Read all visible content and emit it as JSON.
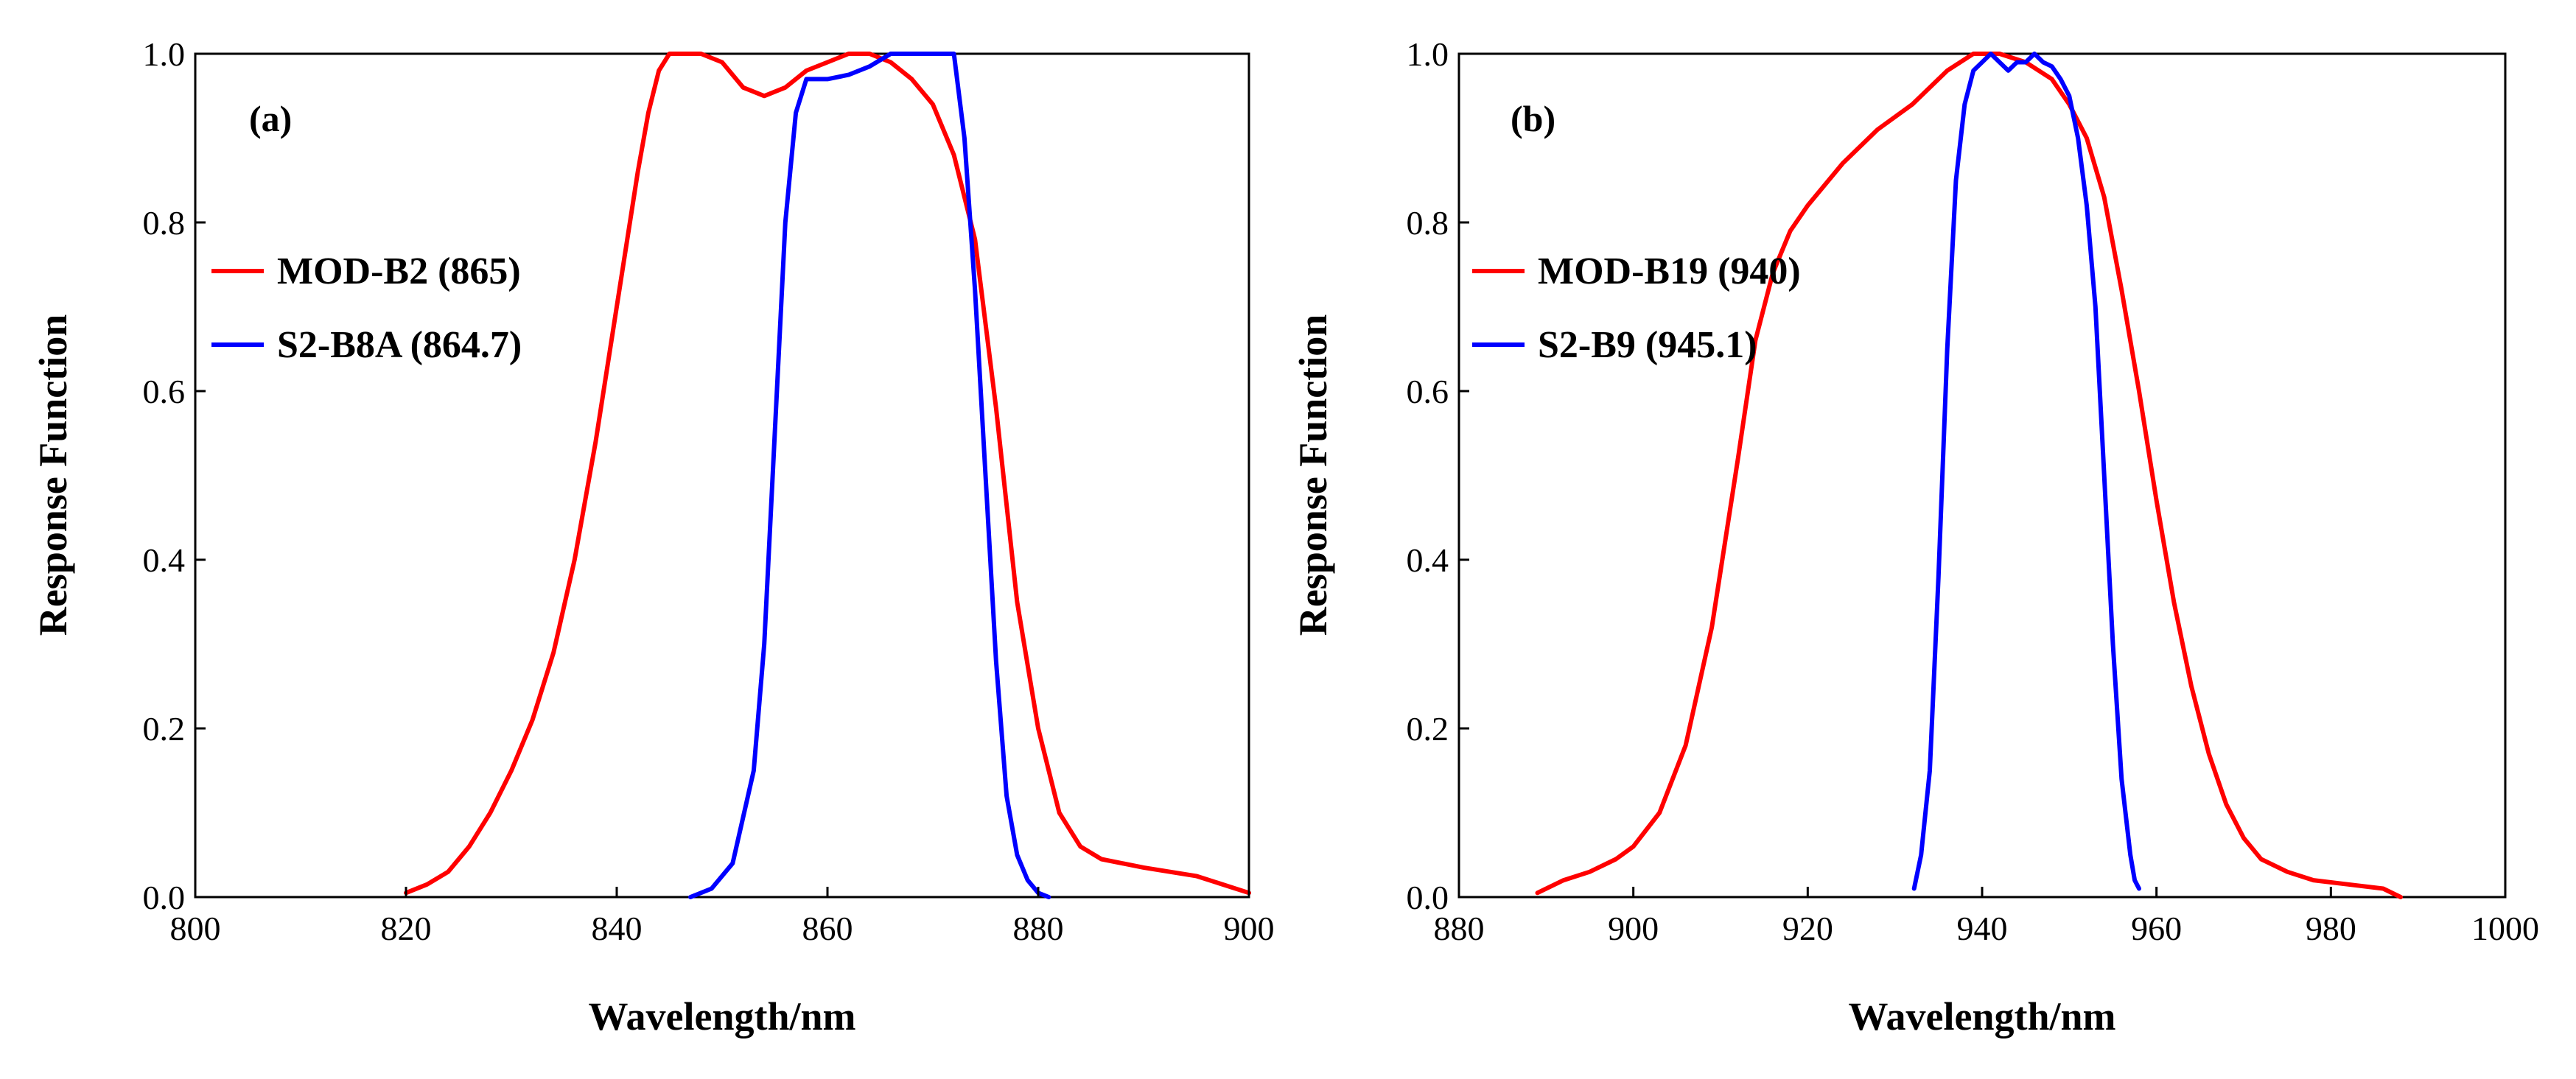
{
  "colors": {
    "modis": "#ff0000",
    "s2": "#0000ff",
    "axis": "#000000"
  },
  "chart_data": [
    {
      "type": "line",
      "panel_label": "(a)",
      "xlabel": "Wavelength/nm",
      "ylabel": "Response Function",
      "xlim": [
        800,
        900
      ],
      "ylim": [
        0.0,
        1.0
      ],
      "xticks": [
        800,
        820,
        840,
        860,
        880,
        900
      ],
      "yticks": [
        "0.0",
        "0.2",
        "0.4",
        "0.6",
        "0.8",
        "1.0"
      ],
      "legend_position": "upper-left",
      "series": [
        {
          "name": "MOD-B2 (865)",
          "color": "#ff0000",
          "x": [
            820,
            822,
            824,
            826,
            828,
            830,
            832,
            834,
            836,
            838,
            840,
            842,
            843,
            844,
            845,
            846,
            848,
            850,
            852,
            854,
            856,
            858,
            860,
            862,
            864,
            866,
            868,
            870,
            872,
            874,
            876,
            878,
            880,
            882,
            884,
            886,
            890,
            895,
            900
          ],
          "y": [
            0.005,
            0.015,
            0.03,
            0.06,
            0.1,
            0.15,
            0.21,
            0.29,
            0.4,
            0.54,
            0.7,
            0.86,
            0.93,
            0.98,
            1.0,
            1.0,
            1.0,
            0.99,
            0.96,
            0.95,
            0.96,
            0.98,
            0.99,
            1.0,
            1.0,
            0.99,
            0.97,
            0.94,
            0.88,
            0.78,
            0.58,
            0.35,
            0.2,
            0.1,
            0.06,
            0.045,
            0.035,
            0.025,
            0.005
          ]
        },
        {
          "name": "S2-B8A (864.7)",
          "color": "#0000ff",
          "x": [
            847,
            849,
            851,
            853,
            854,
            855,
            856,
            857,
            858,
            860,
            862,
            864,
            866,
            868,
            870,
            872,
            873,
            874,
            875,
            876,
            877,
            878,
            879,
            880,
            881
          ],
          "y": [
            0.0,
            0.01,
            0.04,
            0.15,
            0.3,
            0.55,
            0.8,
            0.93,
            0.97,
            0.97,
            0.975,
            0.985,
            1.0,
            1.0,
            1.0,
            1.0,
            0.9,
            0.72,
            0.5,
            0.28,
            0.12,
            0.05,
            0.02,
            0.005,
            0.0
          ]
        }
      ]
    },
    {
      "type": "line",
      "panel_label": "(b)",
      "xlabel": "Wavelength/nm",
      "ylabel": "Response Function",
      "xlim": [
        880,
        1000
      ],
      "ylim": [
        0.0,
        1.0
      ],
      "xticks": [
        880,
        900,
        920,
        940,
        960,
        980,
        1000
      ],
      "yticks": [
        "0.0",
        "0.2",
        "0.4",
        "0.6",
        "0.8",
        "1.0"
      ],
      "legend_position": "upper-left",
      "series": [
        {
          "name": "MOD-B19 (940)",
          "color": "#ff0000",
          "x": [
            889,
            892,
            895,
            898,
            900,
            903,
            906,
            909,
            912,
            914,
            916,
            918,
            920,
            924,
            928,
            932,
            936,
            939,
            942,
            945,
            948,
            950,
            952,
            954,
            956,
            958,
            960,
            962,
            964,
            966,
            968,
            970,
            972,
            975,
            978,
            982,
            986,
            988
          ],
          "y": [
            0.005,
            0.02,
            0.03,
            0.045,
            0.06,
            0.1,
            0.18,
            0.32,
            0.52,
            0.66,
            0.74,
            0.79,
            0.82,
            0.87,
            0.91,
            0.94,
            0.98,
            1.0,
            1.0,
            0.99,
            0.97,
            0.94,
            0.9,
            0.83,
            0.72,
            0.6,
            0.47,
            0.35,
            0.25,
            0.17,
            0.11,
            0.07,
            0.045,
            0.03,
            0.02,
            0.015,
            0.01,
            0.0
          ]
        },
        {
          "name": "S2-B9 (945.1)",
          "color": "#0000ff",
          "x": [
            932.2,
            933,
            934,
            935,
            936,
            937,
            938,
            939,
            940,
            941,
            942,
            943,
            944,
            945,
            946,
            947,
            948,
            949,
            950,
            951,
            952,
            953,
            954,
            955,
            956,
            957,
            957.5,
            958
          ],
          "y": [
            0.01,
            0.05,
            0.15,
            0.38,
            0.65,
            0.85,
            0.94,
            0.98,
            0.99,
            1.0,
            0.99,
            0.98,
            0.99,
            0.99,
            1.0,
            0.99,
            0.985,
            0.97,
            0.95,
            0.9,
            0.82,
            0.7,
            0.5,
            0.3,
            0.14,
            0.05,
            0.02,
            0.01
          ]
        }
      ]
    }
  ]
}
